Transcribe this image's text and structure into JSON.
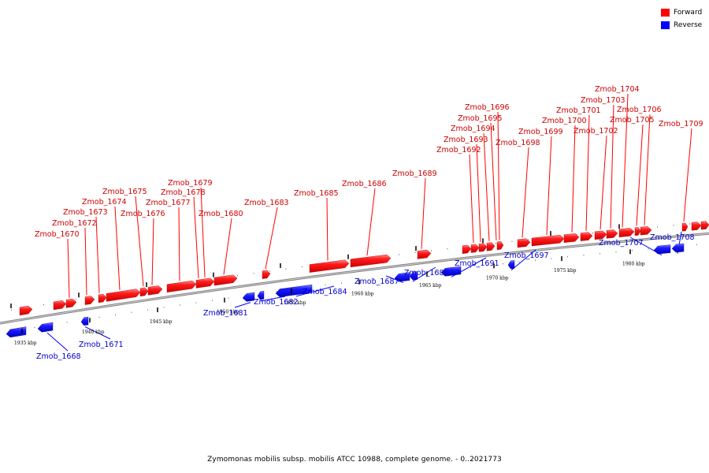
{
  "colors": {
    "forward": "#ff0000",
    "reverse": "#0000ff",
    "track": "#808080"
  },
  "legend": [
    {
      "label": "Forward",
      "color": "#ff0000"
    },
    {
      "label": "Reverse",
      "color": "#0000ff"
    }
  ],
  "caption": "Zymomonas mobilis subsp. mobilis ATCC 10988, complete genome. - 0..2021773",
  "ticks": [
    "1935 kbp",
    "1940 kbp",
    "1945 kbp",
    "1950 kbp",
    "1955 kbp",
    "1960 kbp",
    "1965 kbp",
    "1970 kbp",
    "1975 kbp",
    "1980 kbp"
  ],
  "genes_forward": [
    "Zmob_1670",
    "Zmob_1672",
    "Zmob_1673",
    "Zmob_1674",
    "Zmob_1675",
    "Zmob_1676",
    "Zmob_1677",
    "Zmob_1678",
    "Zmob_1679",
    "Zmob_1680",
    "Zmob_1683",
    "Zmob_1685",
    "Zmob_1686",
    "Zmob_1689",
    "Zmob_1692",
    "Zmob_1693",
    "Zmob_1694",
    "Zmob_1695",
    "Zmob_1696",
    "Zmob_1698",
    "Zmob_1699",
    "Zmob_1700",
    "Zmob_1701",
    "Zmob_1702",
    "Zmob_1703",
    "Zmob_1704",
    "Zmob_1705",
    "Zmob_1706",
    "Zmob_1709"
  ],
  "genes_reverse": [
    "Zmob_1668",
    "Zmob_1671",
    "Zmob_1681",
    "Zmob_1682",
    "Zmob_1684",
    "Zmob_1687",
    "Zmob_1688",
    "Zmob_1691",
    "Zmob_1697",
    "Zmob_1707",
    "Zmob_1708"
  ]
}
